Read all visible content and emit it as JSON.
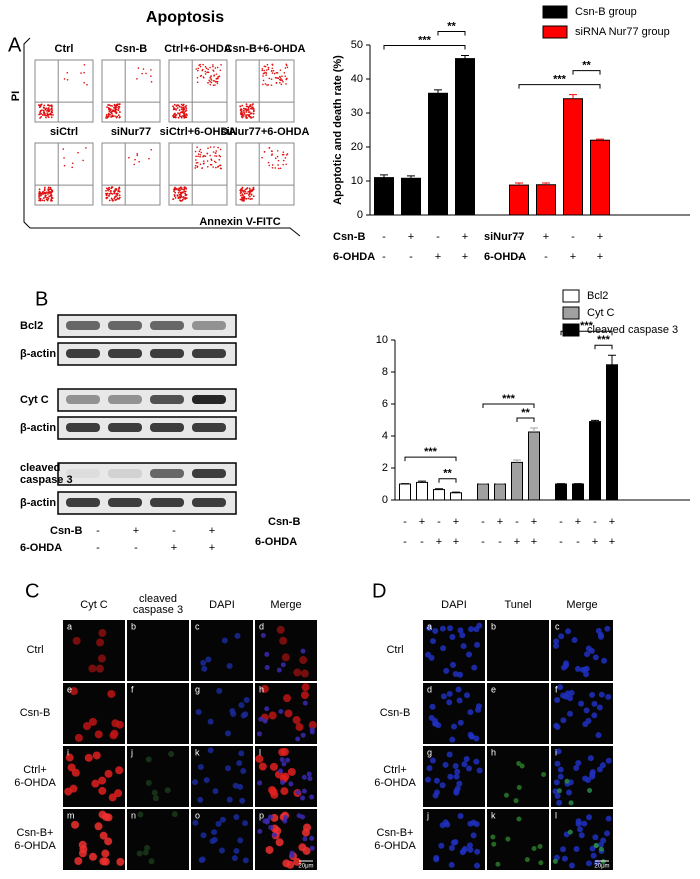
{
  "figure": {
    "title": "Apoptosis",
    "panel_a": {
      "label": "A",
      "flow_titles": [
        "Ctrl",
        "Csn-B",
        "Ctrl+6-OHDA",
        "Csn-B+6-OHDA",
        "siCtrl",
        "siNur77",
        "siCtrl+6-OHDA",
        "siNur77+6-OHDA"
      ],
      "y_axis": "PI",
      "x_axis": "Annexin V-FITC"
    },
    "panel_b": {
      "label": "B",
      "blot_rows": [
        [
          "Bcl2"
        ],
        [
          "β-actin"
        ],
        [
          "Cyt C"
        ],
        [
          "β-actin"
        ],
        [
          "cleaved",
          "caspase 3"
        ],
        [
          "β-actin"
        ]
      ],
      "conditions": [
        {
          "label": "Csn-B",
          "signs": [
            "-",
            "+",
            "-",
            "+"
          ]
        },
        {
          "label": "6-OHDA",
          "signs": [
            "-",
            "-",
            "+",
            "+"
          ]
        }
      ]
    },
    "panel_c": {
      "label": "C",
      "columns": [
        [
          "Cyt C"
        ],
        [
          "cleaved",
          "caspase 3"
        ],
        [
          "DAPI"
        ],
        [
          "Merge"
        ]
      ],
      "rows": [
        [
          "Ctrl"
        ],
        [
          "Csn-B"
        ],
        [
          "Ctrl+",
          "6-OHDA"
        ],
        [
          "Csn-B+",
          "6-OHDA"
        ]
      ],
      "letters": [
        "a",
        "b",
        "c",
        "d",
        "e",
        "f",
        "g",
        "h",
        "i",
        "j",
        "k",
        "l",
        "m",
        "n",
        "o",
        "p"
      ],
      "scale": "20μm"
    },
    "panel_d": {
      "label": "D",
      "columns": [
        [
          "DAPI"
        ],
        [
          "Tunel"
        ],
        [
          "Merge"
        ]
      ],
      "rows": [
        [
          "Ctrl"
        ],
        [
          "Csn-B"
        ],
        [
          "Ctrl+",
          "6-OHDA"
        ],
        [
          "Csn-B+",
          "6-OHDA"
        ]
      ],
      "letters": [
        "a",
        "b",
        "c",
        "d",
        "e",
        "f",
        "g",
        "h",
        "i",
        "j",
        "k",
        "l"
      ],
      "scale": "20μm"
    }
  },
  "chart_data": [
    {
      "type": "bar",
      "ylabel": "Apoptotic and death rate (%)",
      "ylim": [
        0,
        50
      ],
      "yticks": [
        0,
        10,
        20,
        30,
        40,
        50
      ],
      "series": [
        {
          "name": "Csn-B group",
          "color": "#000000",
          "values": [
            11,
            10.8,
            35.8,
            46
          ],
          "errors": [
            0.8,
            0.7,
            1,
            0.9
          ],
          "conditions": [
            {
              "label": "Csn-B",
              "signs": [
                "-",
                "+",
                "-",
                "+"
              ]
            },
            {
              "label": "6-OHDA",
              "signs": [
                "-",
                "-",
                "+",
                "+"
              ]
            }
          ]
        },
        {
          "name": "siRNA Nur77 group",
          "color": "#ff0000",
          "values": [
            8.8,
            8.9,
            34.2,
            22
          ],
          "errors": [
            0.6,
            0.5,
            1.2,
            0.3
          ],
          "conditions": [
            {
              "label": "siNur77",
              "signs": [
                "-",
                "+",
                "-",
                "+"
              ]
            },
            {
              "label": "6-OHDA",
              "signs": [
                "-",
                "-",
                "+",
                "+"
              ]
            }
          ]
        }
      ],
      "annotations": [
        {
          "text": "***",
          "series": 0,
          "from": 0,
          "to": 3
        },
        {
          "text": "**",
          "series": 0,
          "from": 2,
          "to": 3
        },
        {
          "text": "***",
          "series": 1,
          "from": 0,
          "to": 3
        },
        {
          "text": "**",
          "series": 1,
          "from": 2,
          "to": 3
        }
      ]
    },
    {
      "type": "bar",
      "ylim": [
        0,
        10
      ],
      "yticks": [
        0,
        2,
        4,
        6,
        8,
        10
      ],
      "conditions": [
        {
          "label": "Csn-B",
          "signs": [
            "-",
            "+",
            "-",
            "+"
          ]
        },
        {
          "label": "6-OHDA",
          "signs": [
            "-",
            "-",
            "+",
            "+"
          ]
        }
      ],
      "series": [
        {
          "name": "Bcl2",
          "color": "#ffffff",
          "values": [
            1,
            1.1,
            0.65,
            0.45
          ],
          "errors": [
            0.02,
            0.08,
            0.05,
            0.04
          ]
        },
        {
          "name": "Cyt C",
          "color": "#a0a0a0",
          "values": [
            1,
            1,
            2.35,
            4.25
          ],
          "errors": [
            0.02,
            0.02,
            0.15,
            0.25
          ]
        },
        {
          "name": "cleaved  caspase 3",
          "color": "#000000",
          "values": [
            1,
            1,
            4.9,
            8.45
          ],
          "errors": [
            0.02,
            0.02,
            0.08,
            0.6
          ]
        }
      ],
      "annotations": [
        {
          "text": "**",
          "series": 0,
          "from": 2,
          "to": 3
        },
        {
          "text": "***",
          "series": 0,
          "from": 0,
          "to": 3
        },
        {
          "text": "**",
          "series": 1,
          "from": 2,
          "to": 3
        },
        {
          "text": "***",
          "series": 1,
          "from": 0,
          "to": 3
        },
        {
          "text": "***",
          "series": 2,
          "from": 2,
          "to": 3
        },
        {
          "text": "***",
          "series": 2,
          "from": 0,
          "to": 3
        }
      ]
    }
  ]
}
